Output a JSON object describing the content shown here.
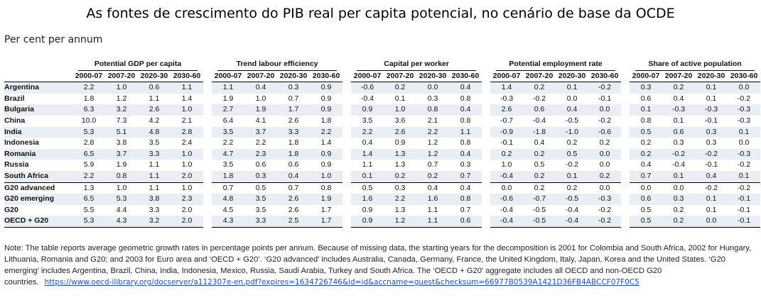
{
  "title": "As fontes de crescimento do PIB real per capita potencial, no cenário de base da OCDE",
  "subtitle": "Per cent per annum",
  "groups": [
    "Potential GDP per capita",
    "Trend labour efficiency",
    "Capital per worker",
    "Potential employment rate",
    "Share of active population"
  ],
  "years": [
    "2000-07",
    "2007-20",
    "2020-30",
    "2030-60"
  ],
  "rows": [
    {
      "country": "Argentina",
      "values": [
        "2.2",
        "1.0",
        "0.6",
        "1.1",
        "1.1",
        "0.4",
        "0.3",
        "0.9",
        "-0.6",
        "0.2",
        "0.0",
        "0.4",
        "1.4",
        "0.2",
        "0.1",
        "-0.2",
        "0.3",
        "0.2",
        "0.1",
        "0.0"
      ]
    },
    {
      "country": "Brazil",
      "values": [
        "1.8",
        "1.2",
        "1.1",
        "1.4",
        "1.9",
        "1.0",
        "0.7",
        "0.9",
        "-0.4",
        "0.1",
        "0.3",
        "0.8",
        "-0.3",
        "-0.2",
        "0.0",
        "-0.1",
        "0.6",
        "0.4",
        "0.1",
        "-0.2"
      ]
    },
    {
      "country": "Bulgaria",
      "values": [
        "6.3",
        "3.2",
        "2.6",
        "1.0",
        "2.7",
        "1.9",
        "1.7",
        "0.9",
        "0.9",
        "1.0",
        "0.8",
        "0.4",
        "2.6",
        "0.6",
        "0.4",
        "0.0",
        "0.1",
        "-0.3",
        "-0.3",
        "-0.3"
      ]
    },
    {
      "country": "China",
      "values": [
        "10.0",
        "7.3",
        "4.2",
        "2.1",
        "6.4",
        "4.1",
        "2.6",
        "1.8",
        "3.5",
        "3.6",
        "2.1",
        "0.8",
        "-0.7",
        "-0.4",
        "-0.5",
        "-0.2",
        "0.8",
        "0.1",
        "-0.1",
        "-0.3"
      ]
    },
    {
      "country": "India",
      "values": [
        "5.3",
        "5.1",
        "4.8",
        "2.8",
        "3.5",
        "3.7",
        "3.3",
        "2.2",
        "2.2",
        "2.6",
        "2.2",
        "1.1",
        "-0.9",
        "-1.8",
        "-1.0",
        "-0.6",
        "0.5",
        "0.6",
        "0.3",
        "0.1"
      ]
    },
    {
      "country": "Indonesia",
      "values": [
        "2.8",
        "3.8",
        "3.5",
        "2.4",
        "2.2",
        "2.2",
        "1.8",
        "1.4",
        "0.4",
        "0.9",
        "1.2",
        "0.8",
        "-0.1",
        "0.4",
        "0.2",
        "0.2",
        "0.2",
        "0.3",
        "0.3",
        "0.0"
      ]
    },
    {
      "country": "Romania",
      "values": [
        "6.5",
        "3.7",
        "3.3",
        "1.0",
        "4.7",
        "2.3",
        "1.8",
        "0.9",
        "1.4",
        "1.3",
        "1.2",
        "0.4",
        "0.2",
        "0.2",
        "0.5",
        "0.0",
        "0.2",
        "-0.2",
        "-0.2",
        "-0.3"
      ]
    },
    {
      "country": "Russia",
      "values": [
        "5.9",
        "1.9",
        "1.1",
        "1.0",
        "3.5",
        "0.6",
        "0.6",
        "0.9",
        "1.1",
        "1.3",
        "0.7",
        "0.3",
        "1.0",
        "0.5",
        "-0.2",
        "0.0",
        "0.4",
        "-0.4",
        "-0.1",
        "-0.2"
      ]
    },
    {
      "country": "South Africa",
      "values": [
        "2.2",
        "0.8",
        "1.1",
        "2.0",
        "1.8",
        "0.3",
        "0.4",
        "1.0",
        "0.1",
        "0.2",
        "0.2",
        "0.7",
        "-0.4",
        "0.2",
        "0.1",
        "0.2",
        "0.7",
        "0.1",
        "0.4",
        "0.1"
      ]
    },
    {
      "country": "G20 advanced",
      "values": [
        "1.3",
        "1.0",
        "1.1",
        "1.0",
        "0.7",
        "0.5",
        "0.7",
        "0.8",
        "0.5",
        "0.3",
        "0.4",
        "0.4",
        "0.0",
        "0.2",
        "0.2",
        "0.0",
        "0.0",
        "0.0",
        "-0.2",
        "-0.2"
      ]
    },
    {
      "country": "G20 emerging",
      "values": [
        "6.5",
        "5.3",
        "3.8",
        "2.3",
        "4.8",
        "3.5",
        "2.6",
        "1.9",
        "1.6",
        "2.2",
        "1.6",
        "0.8",
        "-0.6",
        "-0.7",
        "-0.5",
        "-0.3",
        "0.6",
        "0.3",
        "0.1",
        "-0.1"
      ]
    },
    {
      "country": "G20",
      "values": [
        "5.5",
        "4.4",
        "3.3",
        "2.0",
        "4.5",
        "3.5",
        "2.6",
        "1.7",
        "0.9",
        "1.3",
        "1.1",
        "0.7",
        "-0.4",
        "-0.5",
        "-0.4",
        "-0.2",
        "0.5",
        "0.2",
        "0.1",
        "-0.1"
      ]
    },
    {
      "country": "OECD + G20",
      "values": [
        "5.3",
        "4.3",
        "3.2",
        "2.0",
        "4.3",
        "3.3",
        "2.5",
        "1.7",
        "0.9",
        "1.2",
        "1.1",
        "0.6",
        "-0.4",
        "-0.5",
        "-0.4",
        "-0.2",
        "0.5",
        "0.2",
        "0.0",
        "-0.1"
      ]
    }
  ],
  "note": {
    "text": "Note: The table reports average geometric growth rates in percentage points per annum. Because of missing data, the starting years for the decomposition is 2001 for Colombia and South Africa, 2002 for Hungary, Lithuania, Romania and G20; and 2003 for Euro area and ‘OECD + G20’. ‘G20 advanced’ includes Australia, Canada, Germany, France, the United Kingdom, Italy, Japan, Korea and the United States. ‘G20 emerging’ includes Argentina, Brazil, China, India, Indonesia, Mexico, Russia, Saudi Arabia, Turkey and South Africa. The ‘OECD + G20’ aggregate includes all OECD and non-OECD G20 countries.",
    "link": "https://www.oecd-ilibrary.org/docserver/a112307e-en.pdf?expires=1634726746&id=id&accname=guest&checksum=66977B0539A1421D36FB4ABCCF07F0C5"
  },
  "colors": {
    "row_shade": "#e9eef5",
    "link": "#1f4fbf"
  }
}
